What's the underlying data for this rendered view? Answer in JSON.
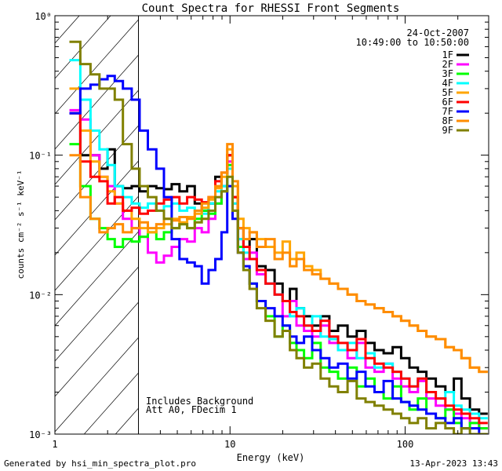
{
  "chart_data": {
    "type": "line",
    "title": "Count Spectra for RHESSI Front Segments",
    "xlabel": "Energy (keV)",
    "ylabel": "counts cm⁻² s⁻¹ keV⁻¹",
    "xscale": "log",
    "yscale": "log",
    "xlim": [
      1,
      300
    ],
    "ylim": [
      0.001,
      1.0
    ],
    "x_ticks": [
      {
        "value": 1,
        "label": "1"
      },
      {
        "value": 10,
        "label": "10"
      },
      {
        "value": 100,
        "label": "100"
      }
    ],
    "y_ticks": [
      {
        "value": 1,
        "label": "10⁰"
      },
      {
        "value": 0.1,
        "label": "10⁻¹"
      },
      {
        "value": 0.01,
        "label": "10⁻²"
      },
      {
        "value": 0.001,
        "label": "10⁻³"
      }
    ],
    "date": "24-Oct-2007",
    "time_range": "10:49:00 to 10:50:00",
    "annotations": [
      "Includes Background",
      "Att A0, FDecim 1"
    ],
    "excluded_region": [
      1.0,
      3.0
    ],
    "series": [
      {
        "name": "1F",
        "color": "#000000",
        "x": [
          1.3,
          1.5,
          1.7,
          1.9,
          2.1,
          2.3,
          2.6,
          2.9,
          3.2,
          3.6,
          4.0,
          4.4,
          4.9,
          5.4,
          6.0,
          6.6,
          7.2,
          7.9,
          8.6,
          9.3,
          10.0,
          10.7,
          11.5,
          12.4,
          13.5,
          15,
          17,
          19,
          21,
          23,
          25,
          28,
          31,
          35,
          39,
          44,
          50,
          56,
          63,
          71,
          80,
          90,
          100,
          112,
          125,
          140,
          160,
          180,
          200,
          220,
          250,
          280
        ],
        "values": [
          0.2,
          0.1,
          0.1,
          0.08,
          0.11,
          0.06,
          0.058,
          0.06,
          0.055,
          0.06,
          0.058,
          0.057,
          0.062,
          0.055,
          0.06,
          0.045,
          0.04,
          0.045,
          0.07,
          0.06,
          0.1,
          0.05,
          0.03,
          0.022,
          0.025,
          0.016,
          0.015,
          0.012,
          0.009,
          0.011,
          0.008,
          0.007,
          0.006,
          0.007,
          0.0055,
          0.006,
          0.005,
          0.0055,
          0.0045,
          0.004,
          0.0038,
          0.0042,
          0.0035,
          0.003,
          0.0028,
          0.0025,
          0.0022,
          0.002,
          0.0025,
          0.0018,
          0.0015,
          0.0014
        ]
      },
      {
        "name": "2F",
        "color": "#ff00ff",
        "x": [
          1.3,
          1.5,
          1.7,
          1.9,
          2.1,
          2.3,
          2.6,
          2.9,
          3.2,
          3.6,
          4.0,
          4.4,
          4.9,
          5.4,
          6.0,
          6.6,
          7.2,
          7.9,
          8.6,
          9.3,
          10.0,
          10.7,
          11.5,
          12.4,
          13.5,
          15,
          17,
          19,
          21,
          23,
          25,
          28,
          31,
          35,
          39,
          44,
          50,
          56,
          63,
          71,
          80,
          90,
          100,
          112,
          125,
          140,
          160,
          180,
          200,
          220,
          250,
          280
        ],
        "values": [
          0.21,
          0.18,
          0.1,
          0.07,
          0.06,
          0.045,
          0.035,
          0.03,
          0.026,
          0.02,
          0.017,
          0.019,
          0.022,
          0.025,
          0.024,
          0.03,
          0.028,
          0.035,
          0.045,
          0.055,
          0.09,
          0.045,
          0.025,
          0.018,
          0.02,
          0.014,
          0.012,
          0.01,
          0.007,
          0.009,
          0.006,
          0.0055,
          0.005,
          0.006,
          0.0045,
          0.004,
          0.0035,
          0.0045,
          0.003,
          0.0028,
          0.0032,
          0.0025,
          0.0022,
          0.002,
          0.0024,
          0.0018,
          0.0016,
          0.0015,
          0.0014,
          0.0013,
          0.0012,
          0.0011
        ]
      },
      {
        "name": "3F",
        "color": "#00ff00",
        "x": [
          1.3,
          1.5,
          1.7,
          1.9,
          2.1,
          2.3,
          2.6,
          2.9,
          3.2,
          3.6,
          4.0,
          4.4,
          4.9,
          5.4,
          6.0,
          6.6,
          7.2,
          7.9,
          8.6,
          9.3,
          10.0,
          10.7,
          11.5,
          12.4,
          13.5,
          15,
          17,
          19,
          21,
          23,
          25,
          28,
          31,
          35,
          39,
          44,
          50,
          56,
          63,
          71,
          80,
          90,
          100,
          112,
          125,
          140,
          160,
          180,
          200,
          220,
          250,
          280
        ],
        "values": [
          0.12,
          0.06,
          0.035,
          0.03,
          0.025,
          0.022,
          0.025,
          0.024,
          0.026,
          0.028,
          0.025,
          0.028,
          0.03,
          0.032,
          0.03,
          0.035,
          0.04,
          0.038,
          0.045,
          0.055,
          0.085,
          0.04,
          0.022,
          0.015,
          0.012,
          0.009,
          0.007,
          0.005,
          0.006,
          0.0045,
          0.004,
          0.0035,
          0.0045,
          0.003,
          0.0028,
          0.0025,
          0.003,
          0.0022,
          0.0025,
          0.002,
          0.0018,
          0.0022,
          0.0017,
          0.0015,
          0.0018,
          0.0014,
          0.0013,
          0.0015,
          0.0012,
          0.0011,
          0.0012,
          0.0011
        ]
      },
      {
        "name": "4F",
        "color": "#00ffff",
        "x": [
          1.3,
          1.5,
          1.7,
          1.9,
          2.1,
          2.3,
          2.6,
          2.9,
          3.2,
          3.6,
          4.0,
          4.4,
          4.9,
          5.4,
          6.0,
          6.6,
          7.2,
          7.9,
          8.6,
          9.3,
          10.0,
          10.7,
          11.5,
          12.4,
          13.5,
          15,
          17,
          19,
          21,
          23,
          25,
          28,
          31,
          35,
          39,
          44,
          50,
          56,
          63,
          71,
          80,
          90,
          100,
          112,
          125,
          140,
          160,
          180,
          200,
          220,
          250,
          280
        ],
        "values": [
          0.48,
          0.25,
          0.15,
          0.11,
          0.085,
          0.06,
          0.05,
          0.045,
          0.042,
          0.045,
          0.04,
          0.043,
          0.045,
          0.04,
          0.042,
          0.04,
          0.038,
          0.045,
          0.055,
          0.06,
          0.08,
          0.045,
          0.025,
          0.02,
          0.018,
          0.015,
          0.012,
          0.01,
          0.009,
          0.007,
          0.008,
          0.006,
          0.007,
          0.005,
          0.0048,
          0.004,
          0.0045,
          0.0035,
          0.0038,
          0.003,
          0.0032,
          0.0028,
          0.0025,
          0.0022,
          0.0025,
          0.002,
          0.0018,
          0.002,
          0.0016,
          0.0015,
          0.0014,
          0.0013
        ]
      },
      {
        "name": "5F",
        "color": "#ffa500",
        "x": [
          1.3,
          1.5,
          1.7,
          1.9,
          2.1,
          2.3,
          2.6,
          2.9,
          3.2,
          3.6,
          4.0,
          4.4,
          4.9,
          5.4,
          6.0,
          6.6,
          7.2,
          7.9,
          8.6,
          9.3,
          10.0,
          10.7,
          11.5,
          12.4,
          13.5,
          15,
          17,
          19,
          21,
          23,
          25,
          28,
          31,
          35,
          39,
          44,
          50,
          56,
          63,
          71,
          80,
          90,
          100,
          112,
          125,
          140,
          160,
          180,
          200,
          220,
          250,
          280
        ],
        "values": [
          0.3,
          0.15,
          0.09,
          0.07,
          0.055,
          0.045,
          0.04,
          0.035,
          0.03,
          0.028,
          0.03,
          0.032,
          0.035,
          0.033,
          0.036,
          0.038,
          0.042,
          0.048,
          0.058,
          0.07,
          0.11,
          0.06,
          0.035,
          0.03,
          0.028,
          0.025,
          0.022,
          0.02,
          0.024,
          0.018,
          0.02,
          0.016,
          0.015,
          0.013,
          0.012,
          0.011,
          0.01,
          0.009,
          0.0085,
          0.008,
          0.0075,
          0.007,
          0.0065,
          0.006,
          0.0055,
          0.005,
          0.0048,
          0.0042,
          0.004,
          0.0035,
          0.003,
          0.0028
        ]
      },
      {
        "name": "6F",
        "color": "#ff0000",
        "x": [
          1.3,
          1.5,
          1.7,
          1.9,
          2.1,
          2.3,
          2.6,
          2.9,
          3.2,
          3.6,
          4.0,
          4.4,
          4.9,
          5.4,
          6.0,
          6.6,
          7.2,
          7.9,
          8.6,
          9.3,
          10.0,
          10.7,
          11.5,
          12.4,
          13.5,
          15,
          17,
          19,
          21,
          23,
          25,
          28,
          31,
          35,
          39,
          44,
          50,
          56,
          63,
          71,
          80,
          90,
          100,
          112,
          125,
          140,
          160,
          180,
          200,
          220,
          250,
          280
        ],
        "values": [
          0.2,
          0.09,
          0.07,
          0.065,
          0.045,
          0.05,
          0.04,
          0.042,
          0.038,
          0.04,
          0.045,
          0.048,
          0.05,
          0.045,
          0.05,
          0.048,
          0.046,
          0.05,
          0.065,
          0.075,
          0.1,
          0.05,
          0.03,
          0.022,
          0.018,
          0.015,
          0.012,
          0.01,
          0.009,
          0.0075,
          0.007,
          0.006,
          0.0055,
          0.0065,
          0.005,
          0.0045,
          0.004,
          0.0048,
          0.0035,
          0.0032,
          0.003,
          0.0028,
          0.0025,
          0.0022,
          0.0025,
          0.002,
          0.0018,
          0.0016,
          0.0015,
          0.0014,
          0.0013,
          0.0012
        ]
      },
      {
        "name": "7F",
        "color": "#0000ff",
        "x": [
          1.3,
          1.5,
          1.7,
          1.9,
          2.1,
          2.3,
          2.6,
          2.9,
          3.2,
          3.6,
          4.0,
          4.4,
          4.9,
          5.4,
          6.0,
          6.6,
          7.2,
          7.9,
          8.6,
          9.3,
          10.0,
          10.7,
          11.5,
          12.4,
          13.5,
          15,
          17,
          19,
          21,
          23,
          25,
          28,
          31,
          35,
          39,
          44,
          50,
          56,
          63,
          71,
          80,
          90,
          100,
          112,
          125,
          140,
          160,
          180,
          200,
          220,
          250,
          280
        ],
        "values": [
          0.2,
          0.3,
          0.32,
          0.35,
          0.37,
          0.34,
          0.3,
          0.25,
          0.15,
          0.11,
          0.08,
          0.05,
          0.025,
          0.018,
          0.017,
          0.016,
          0.012,
          0.015,
          0.018,
          0.028,
          0.06,
          0.035,
          0.02,
          0.016,
          0.012,
          0.009,
          0.008,
          0.007,
          0.006,
          0.005,
          0.0045,
          0.005,
          0.004,
          0.0035,
          0.003,
          0.0032,
          0.0025,
          0.0028,
          0.0022,
          0.002,
          0.0024,
          0.0018,
          0.0017,
          0.0016,
          0.0015,
          0.0014,
          0.0013,
          0.0012,
          0.0013,
          0.0011,
          0.0011,
          0.001
        ]
      },
      {
        "name": "8F",
        "color": "#ff8c00",
        "x": [
          1.3,
          1.5,
          1.7,
          1.9,
          2.1,
          2.3,
          2.6,
          2.9,
          3.2,
          3.6,
          4.0,
          4.4,
          4.9,
          5.4,
          6.0,
          6.6,
          7.2,
          7.9,
          8.6,
          9.3,
          10.0,
          10.7,
          11.5,
          12.4,
          13.5,
          15,
          17,
          19,
          21,
          23,
          25,
          28,
          31,
          35,
          39,
          44,
          50,
          56,
          63,
          71,
          80,
          90,
          100,
          112,
          125,
          140,
          160,
          180,
          200,
          220,
          250,
          280
        ],
        "values": [
          0.1,
          0.05,
          0.035,
          0.028,
          0.03,
          0.032,
          0.028,
          0.03,
          0.033,
          0.03,
          0.032,
          0.035,
          0.034,
          0.036,
          0.035,
          0.04,
          0.045,
          0.05,
          0.06,
          0.075,
          0.12,
          0.065,
          0.03,
          0.025,
          0.028,
          0.022,
          0.025,
          0.018,
          0.02,
          0.016,
          0.018,
          0.015,
          0.014,
          0.013,
          0.012,
          0.011,
          0.01,
          0.009,
          0.0085,
          0.008,
          0.0075,
          0.007,
          0.0065,
          0.006,
          0.0055,
          0.005,
          0.0048,
          0.0042,
          0.004,
          0.0035,
          0.003,
          0.0028
        ]
      },
      {
        "name": "9F",
        "color": "#808000",
        "x": [
          1.3,
          1.5,
          1.7,
          1.9,
          2.1,
          2.3,
          2.6,
          2.9,
          3.2,
          3.6,
          4.0,
          4.4,
          4.9,
          5.4,
          6.0,
          6.6,
          7.2,
          7.9,
          8.6,
          9.3,
          10.0,
          10.7,
          11.5,
          12.4,
          13.5,
          15,
          17,
          19,
          21,
          23,
          25,
          28,
          31,
          35,
          39,
          44,
          50,
          56,
          63,
          71,
          80,
          90,
          100,
          112,
          125,
          140,
          160,
          180,
          200,
          220,
          250,
          280
        ],
        "values": [
          0.65,
          0.45,
          0.38,
          0.3,
          0.3,
          0.25,
          0.12,
          0.08,
          0.06,
          0.05,
          0.04,
          0.035,
          0.03,
          0.032,
          0.03,
          0.033,
          0.035,
          0.04,
          0.05,
          0.055,
          0.07,
          0.04,
          0.02,
          0.015,
          0.011,
          0.008,
          0.0065,
          0.005,
          0.0055,
          0.004,
          0.0035,
          0.003,
          0.0032,
          0.0025,
          0.0022,
          0.002,
          0.0024,
          0.0018,
          0.0017,
          0.0016,
          0.0015,
          0.0014,
          0.0013,
          0.0012,
          0.0013,
          0.0011,
          0.0012,
          0.0011,
          0.001,
          0.0011,
          0.001,
          0.001
        ]
      }
    ]
  },
  "footer": {
    "generated_by": "Generated by hsi_min_spectra_plot.pro",
    "timestamp": "13-Apr-2023 13:43"
  }
}
